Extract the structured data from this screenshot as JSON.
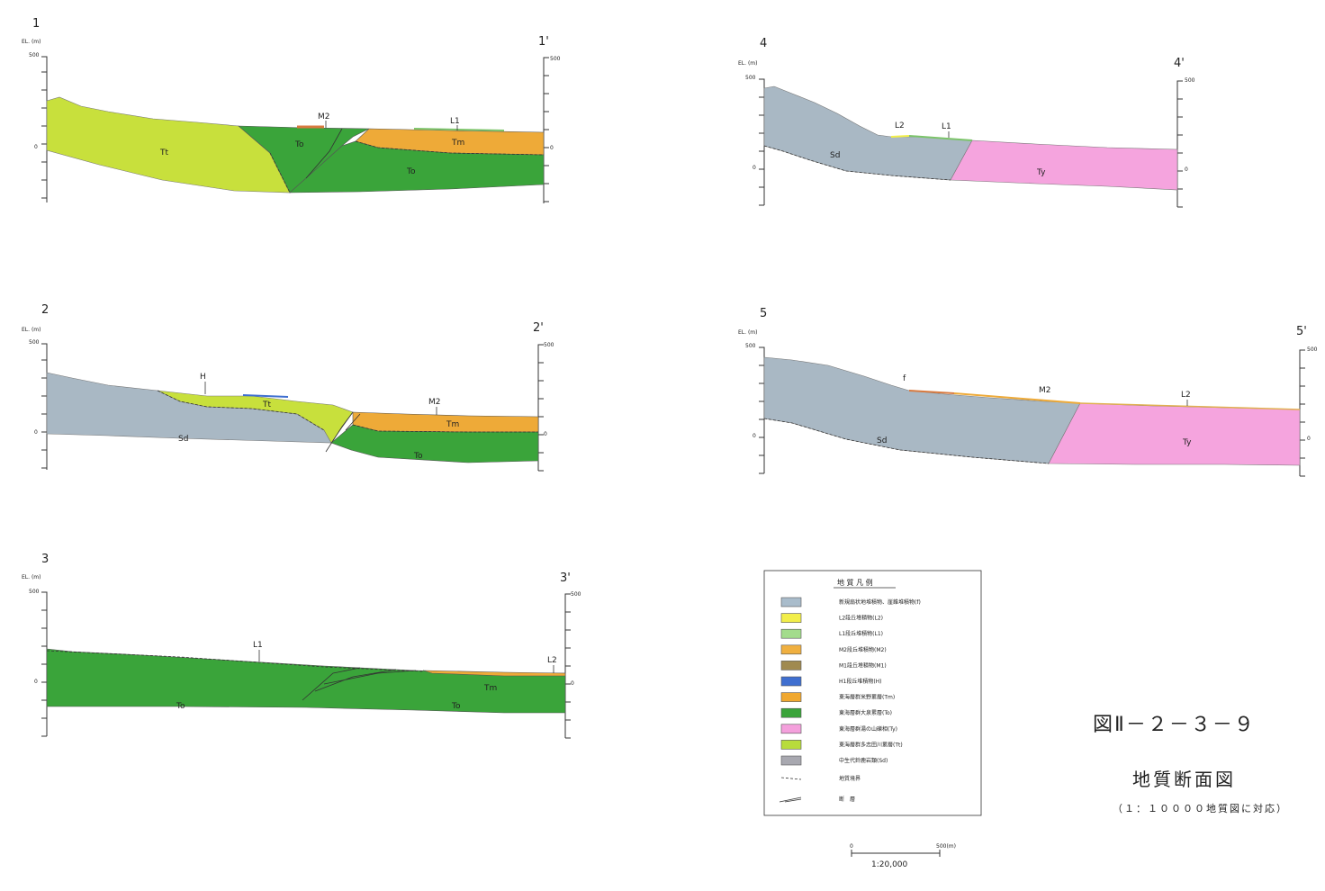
{
  "sections": [
    {
      "start": "1",
      "end": "1'",
      "el_label": "EL. (m)",
      "tick_top": "500",
      "tick_zero": "0",
      "units": [
        {
          "id": "1-Tt",
          "code": "Tt"
        },
        {
          "id": "1-To-a",
          "code": "To"
        },
        {
          "id": "1-Tm",
          "code": "Tm"
        },
        {
          "id": "1-To-b",
          "code": "To"
        }
      ],
      "terrace_marks": [
        "M2",
        "L1"
      ]
    },
    {
      "start": "2",
      "end": "2'",
      "el_label": "EL. (m)",
      "tick_top": "500",
      "tick_zero": "0",
      "units": [
        {
          "id": "2-Sd",
          "code": "Sd"
        },
        {
          "id": "2-Tt",
          "code": "Tt"
        },
        {
          "id": "2-Tm",
          "code": "Tm"
        },
        {
          "id": "2-To",
          "code": "To"
        }
      ],
      "terrace_marks": [
        "H",
        "M2"
      ]
    },
    {
      "start": "3",
      "end": "3'",
      "el_label": "EL. (m)",
      "tick_top": "500",
      "tick_zero": "0",
      "units": [
        {
          "id": "3-To-a",
          "code": "To"
        },
        {
          "id": "3-To-b",
          "code": "To"
        },
        {
          "id": "3-Tm",
          "code": "Tm"
        }
      ],
      "terrace_marks": [
        "L1",
        "L2"
      ]
    },
    {
      "start": "4",
      "end": "4'",
      "el_label": "EL. (m)",
      "tick_top": "500",
      "tick_zero": "0",
      "units": [
        {
          "id": "4-Sd",
          "code": "Sd"
        },
        {
          "id": "4-Ty",
          "code": "Ty"
        }
      ],
      "terrace_marks": [
        "L2",
        "L1"
      ]
    },
    {
      "start": "5",
      "end": "5'",
      "el_label": "EL. (m)",
      "tick_top": "500",
      "tick_zero": "0",
      "units": [
        {
          "id": "5-Sd",
          "code": "Sd"
        },
        {
          "id": "5-Ty",
          "code": "Ty"
        }
      ],
      "terrace_marks": [
        "f",
        "M2",
        "L2"
      ]
    }
  ],
  "legend": {
    "title": "地 質 凡 例",
    "items": [
      {
        "label": "新規扇状地堆積物、崖錐堆積物(f)",
        "color": "#a9bccb"
      },
      {
        "label": "L2段丘堆積物(L2)",
        "color": "#f2ee4a"
      },
      {
        "label": "L1段丘堆積物(L1)",
        "color": "#a3dc8c"
      },
      {
        "label": "M2段丘堆積物(M2)",
        "color": "#f0b040"
      },
      {
        "label": "M1段丘堆積物(M1)",
        "color": "#a08a50"
      },
      {
        "label": "H1段丘堆積物(H)",
        "color": "#3f6fd0"
      },
      {
        "label": "東海層群米野累層(Tm)",
        "color": "#f0a830"
      },
      {
        "label": "東海層群大泉累層(To)",
        "color": "#3aa43a"
      },
      {
        "label": "東海層群湯の山礫相(Ty)",
        "color": "#f4a0dc"
      },
      {
        "label": "東海層群多志田川累層(Tt)",
        "color": "#b8dc3c"
      },
      {
        "label": "中生代鈴鹿岩類(Sd)",
        "color": "#a8a8b0"
      }
    ],
    "line_items": [
      {
        "label": "地質境界",
        "style": "dashed"
      },
      {
        "label": "断　層",
        "style": "fault"
      }
    ]
  },
  "scale": {
    "zero": "0",
    "end": "500(m)",
    "ratio": "1:20,000"
  },
  "figure": {
    "number": "図Ⅱ－２－３－９",
    "title": "地質断面図",
    "subtitle": "（１：１００００地質図に対応）"
  },
  "colors": {
    "Tt": "#c8e03c",
    "To": "#3aa43a",
    "Tm": "#eeaa38",
    "Sd": "#a9b8c4",
    "Ty": "#f5a4de",
    "L1": "#7cc46a",
    "M2": "#d87a40",
    "H": "#3f6fd0"
  }
}
